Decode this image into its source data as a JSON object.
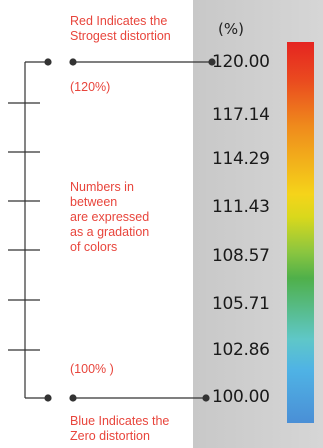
{
  "scale": {
    "unit": "(%)",
    "ticks": [
      "120.00",
      "117.14",
      "114.29",
      "111.43",
      "108.57",
      "105.71",
      "102.86",
      "100.00"
    ],
    "colorbar_colors": {
      "top": "#e52421",
      "bottom": "#4a8fd6"
    }
  },
  "annotations": {
    "red_note": "Red Indicates the\nStrogest distortion",
    "top_percent": "(120%)",
    "middle_note": "Numbers in\nbetween\nare expressed\nas a gradation\nof colors",
    "bottom_percent": "(100% )",
    "blue_note": "Blue Indicates the\nZero distortion"
  },
  "colors": {
    "annotation_text": "#e8453c",
    "panel_bg": "#cfcfcf"
  }
}
